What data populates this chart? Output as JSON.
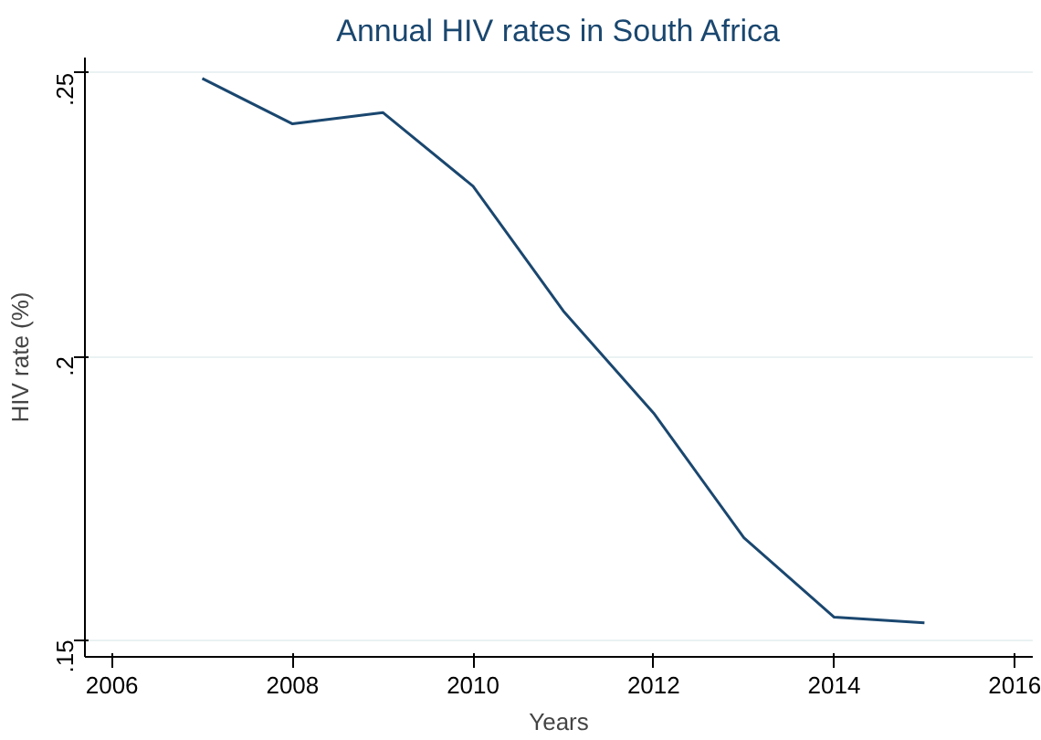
{
  "chart_data": {
    "type": "line",
    "title": "Annual HIV rates in South Africa",
    "xlabel": "Years",
    "ylabel": "HIV rate (%)",
    "x": [
      2007,
      2008,
      2009,
      2010,
      2011,
      2012,
      2013,
      2014,
      2015
    ],
    "series": [
      {
        "color": "#1a476f",
        "values": [
          0.249,
          0.241,
          0.243,
          0.23,
          0.208,
          0.19,
          0.168,
          0.154,
          0.153
        ]
      }
    ],
    "xlim": [
      2005.7,
      2016.2
    ],
    "ylim": [
      0.147,
      0.2527
    ],
    "xticks": [
      2006,
      2008,
      2010,
      2012,
      2014,
      2016
    ],
    "yticks": [
      {
        "value": 0.15,
        "label": ".15"
      },
      {
        "value": 0.2,
        "label": ".2"
      },
      {
        "value": 0.25,
        "label": ".25"
      }
    ],
    "grid": "y"
  }
}
